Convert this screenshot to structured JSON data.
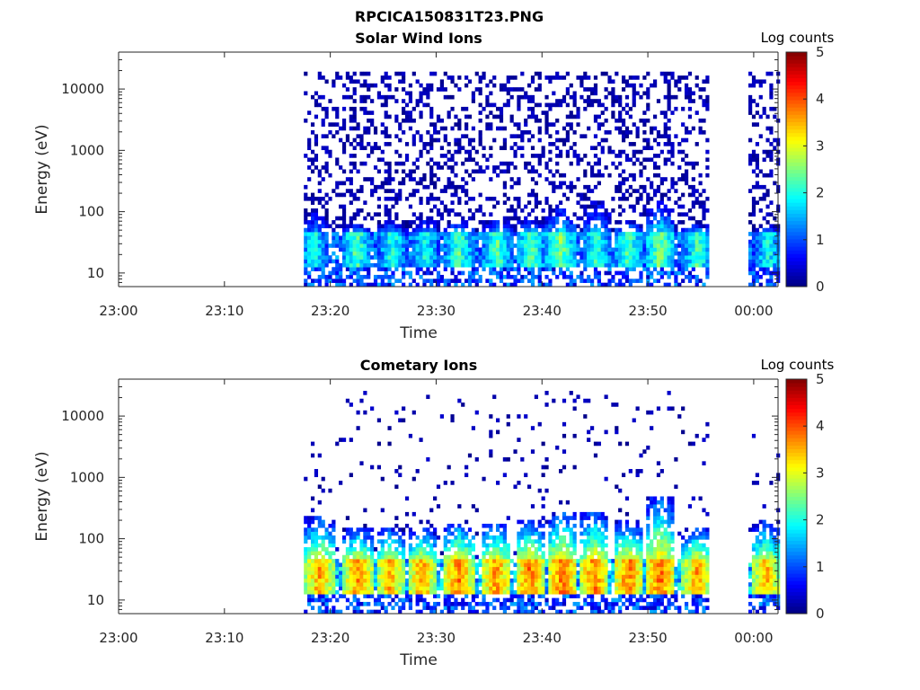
{
  "figure": {
    "title": "RPCICA150831T23.PNG"
  },
  "colors": {
    "colormap": [
      "#00007f",
      "#0000ff",
      "#007fff",
      "#00ffff",
      "#7fff7f",
      "#ffff00",
      "#ff7f00",
      "#ff0000",
      "#7f0000"
    ],
    "axis": "#262626"
  },
  "chart_data": [
    {
      "type": "heatmap",
      "title": "Solar Wind Ions",
      "xlabel": "Time",
      "ylabel": "Energy (eV)",
      "x_ticks": [
        "23:00",
        "23:10",
        "23:20",
        "23:30",
        "23:40",
        "23:50",
        "00:00"
      ],
      "x_tick_minutes": [
        0,
        10,
        20,
        30,
        40,
        50,
        60
      ],
      "xlim_minutes": [
        0,
        62.3
      ],
      "y_scale": "log",
      "y_ticks": [
        "10",
        "100",
        "1000",
        "10000"
      ],
      "y_tick_values": [
        10,
        100,
        1000,
        10000
      ],
      "ylim": [
        6,
        40000
      ],
      "colorbar": {
        "label": "Log counts",
        "range": [
          0,
          5
        ],
        "ticks": [
          "0",
          "1",
          "2",
          "3",
          "4",
          "5"
        ]
      },
      "data_segments_minutes": [
        [
          17.5,
          55.7
        ],
        [
          59.5,
          62.2
        ]
      ],
      "low_energy_band_eV": [
        12,
        45
      ],
      "band_level": 1.6,
      "scatter_max_eV": 20000,
      "scatter_level": 0.3,
      "bursts": [
        {
          "t": 18.3,
          "peak_eV": 60,
          "level": 2.0
        },
        {
          "t": 22.3,
          "peak_eV": 40,
          "level": 2.3
        },
        {
          "t": 25.7,
          "peak_eV": 45,
          "level": 2.1
        },
        {
          "t": 28.8,
          "peak_eV": 50,
          "level": 2.0
        },
        {
          "t": 32.0,
          "peak_eV": 45,
          "level": 2.3
        },
        {
          "t": 35.6,
          "peak_eV": 50,
          "level": 2.3
        },
        {
          "t": 38.8,
          "peak_eV": 50,
          "level": 2.3
        },
        {
          "t": 41.6,
          "peak_eV": 70,
          "level": 2.5
        },
        {
          "t": 45.0,
          "peak_eV": 90,
          "level": 2.2
        },
        {
          "t": 48.0,
          "peak_eV": 45,
          "level": 2.3
        },
        {
          "t": 51.0,
          "peak_eV": 90,
          "level": 2.5
        },
        {
          "t": 54.5,
          "peak_eV": 40,
          "level": 2.2
        },
        {
          "t": 61.2,
          "peak_eV": 40,
          "level": 2.0
        }
      ]
    },
    {
      "type": "heatmap",
      "title": "Cometary Ions",
      "xlabel": "Time",
      "ylabel": "Energy (eV)",
      "x_ticks": [
        "23:00",
        "23:10",
        "23:20",
        "23:30",
        "23:40",
        "23:50",
        "00:00"
      ],
      "x_tick_minutes": [
        0,
        10,
        20,
        30,
        40,
        50,
        60
      ],
      "xlim_minutes": [
        0,
        62.3
      ],
      "y_scale": "log",
      "y_ticks": [
        "10",
        "100",
        "1000",
        "10000"
      ],
      "y_tick_values": [
        10,
        100,
        1000,
        10000
      ],
      "ylim": [
        6,
        40000
      ],
      "colorbar": {
        "label": "Log counts",
        "range": [
          0,
          5
        ],
        "ticks": [
          "0",
          "1",
          "2",
          "3",
          "4",
          "5"
        ]
      },
      "data_segments_minutes": [
        [
          17.5,
          55.7
        ],
        [
          59.5,
          62.2
        ]
      ],
      "low_energy_band_eV": [
        12,
        45
      ],
      "band_level": 2.2,
      "scatter_max_eV": 25000,
      "scatter_level": 0.05,
      "bursts": [
        {
          "t": 18.8,
          "peak_eV": 150,
          "level": 3.6
        },
        {
          "t": 22.5,
          "peak_eV": 90,
          "level": 3.7
        },
        {
          "t": 25.5,
          "peak_eV": 90,
          "level": 3.5
        },
        {
          "t": 28.5,
          "peak_eV": 90,
          "level": 3.6
        },
        {
          "t": 32.0,
          "peak_eV": 110,
          "level": 3.8
        },
        {
          "t": 35.5,
          "peak_eV": 110,
          "level": 3.7
        },
        {
          "t": 38.7,
          "peak_eV": 120,
          "level": 3.8
        },
        {
          "t": 41.8,
          "peak_eV": 160,
          "level": 3.9
        },
        {
          "t": 44.8,
          "peak_eV": 170,
          "level": 3.8
        },
        {
          "t": 48.0,
          "peak_eV": 120,
          "level": 3.8
        },
        {
          "t": 51.0,
          "peak_eV": 300,
          "level": 3.9
        },
        {
          "t": 54.5,
          "peak_eV": 90,
          "level": 3.6
        },
        {
          "t": 61.0,
          "peak_eV": 120,
          "level": 3.5
        }
      ]
    }
  ]
}
